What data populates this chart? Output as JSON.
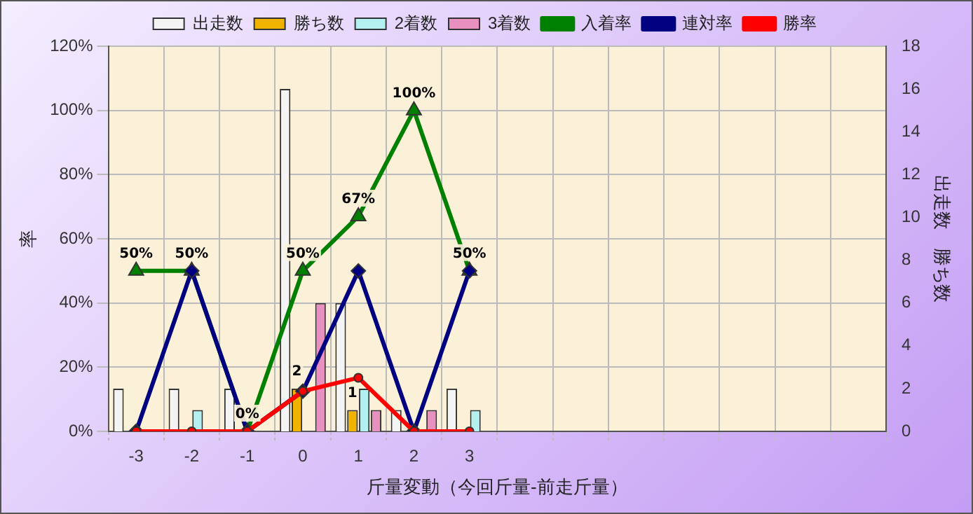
{
  "chart_data": {
    "type": "bar",
    "xlabel": "斤量変動（今回斤量-前走斤量）",
    "ylabel": "率",
    "y2label": "出走数　勝ち数",
    "categories": [
      "-3",
      "-2",
      "-1",
      "0",
      "1",
      "2",
      "3",
      null,
      null,
      null,
      null,
      null,
      null,
      null
    ],
    "series": [
      {
        "name": "出走数",
        "axis": "y2",
        "color": "#f4f4f4",
        "values": [
          2,
          2,
          2,
          16,
          6,
          1,
          2,
          null,
          null,
          null,
          null,
          null,
          null,
          null
        ]
      },
      {
        "name": "勝ち数",
        "axis": "y2",
        "color": "#f0b400",
        "values": [
          0,
          0,
          0,
          2,
          1,
          0,
          0,
          null,
          null,
          null,
          null,
          null,
          null,
          null
        ],
        "value_labels": [
          null,
          null,
          null,
          "2",
          "1",
          null,
          null,
          null,
          null,
          null,
          null,
          null,
          null,
          null
        ]
      },
      {
        "name": "2着数",
        "axis": "y2",
        "color": "#b4f0f0",
        "values": [
          0,
          1,
          0,
          0,
          2,
          0,
          1,
          null,
          null,
          null,
          null,
          null,
          null,
          null
        ]
      },
      {
        "name": "3着数",
        "axis": "y2",
        "color": "#e890c0",
        "values": [
          0,
          0,
          0,
          6,
          1,
          1,
          0,
          null,
          null,
          null,
          null,
          null,
          null,
          null
        ]
      },
      {
        "name": "入着率",
        "type": "line",
        "axis": "y",
        "color": "#008000",
        "marker": "triangle",
        "values": [
          50,
          50,
          0,
          50,
          67,
          100,
          50,
          null,
          null,
          null,
          null,
          null,
          null,
          null
        ],
        "value_labels": [
          "50%",
          "50%",
          "0%",
          "50%",
          "67%",
          "100%",
          "50%",
          null,
          null,
          null,
          null,
          null,
          null,
          null
        ]
      },
      {
        "name": "連対率",
        "type": "line",
        "axis": "y",
        "color": "#000080",
        "marker": "diamond",
        "values": [
          0,
          50,
          0,
          12.5,
          50,
          0,
          50,
          null,
          null,
          null,
          null,
          null,
          null,
          null
        ]
      },
      {
        "name": "勝率",
        "type": "line",
        "axis": "y",
        "color": "#ff0000",
        "marker": "circle",
        "values": [
          0,
          0,
          0,
          12.5,
          16.7,
          0,
          0,
          null,
          null,
          null,
          null,
          null,
          null,
          null
        ]
      }
    ],
    "ylim": [
      0,
      120
    ],
    "yticks": [
      {
        "value": 0,
        "label": "0%"
      },
      {
        "value": 20,
        "label": "20%"
      },
      {
        "value": 40,
        "label": "40%"
      },
      {
        "value": 60,
        "label": "60%"
      },
      {
        "value": 80,
        "label": "80%"
      },
      {
        "value": 100,
        "label": "100%"
      },
      {
        "value": 120,
        "label": "120%"
      }
    ],
    "y2lim": [
      0,
      18
    ],
    "y2ticks": [
      0,
      2,
      4,
      6,
      8,
      10,
      12,
      14,
      16,
      18
    ],
    "grid": true,
    "legend": "top"
  }
}
